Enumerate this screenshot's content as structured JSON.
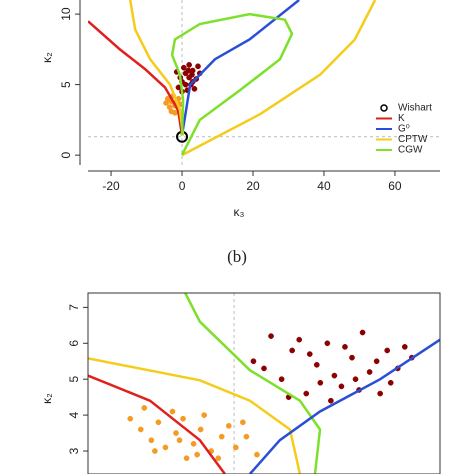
{
  "chart_data": [
    {
      "type": "line",
      "xlabel": "κ₃",
      "ylabel": "κ₂",
      "caption": "(b)",
      "xlim": [
        -26.5,
        72.7
      ],
      "ylim": [
        -0.7,
        11
      ],
      "xticks": [
        -20,
        0,
        20,
        40,
        60
      ],
      "yticks": [
        0,
        5,
        10
      ],
      "hline": 1.3,
      "vline": 0,
      "legend": "right",
      "series": [
        {
          "type": "scatter",
          "color": "#8b0000",
          "x": [
            0,
            1,
            2,
            3,
            -1,
            1.5,
            2.5,
            4,
            0.5,
            3.5,
            -0.5,
            2,
            5,
            1,
            3,
            -1.5,
            4.5,
            0,
            2.8,
            1.8
          ],
          "values": [
            5.2,
            5.8,
            5.5,
            6.0,
            4.8,
            4.6,
            5.0,
            5.4,
            6.2,
            4.7,
            5.5,
            6.4,
            5.8,
            5.0,
            5.2,
            5.9,
            6.3,
            4.5,
            5.7,
            6.0
          ]
        },
        {
          "type": "scatter",
          "color": "#f59a23",
          "x": [
            -3,
            -2,
            -1,
            -4,
            -2.5,
            -1.5,
            -3.5,
            -0.5,
            -2,
            -1,
            -3,
            -4.5
          ],
          "values": [
            3.8,
            3.5,
            3.2,
            4.0,
            4.2,
            3.8,
            3.4,
            3.6,
            3.0,
            4.0,
            3.1,
            3.7
          ]
        },
        {
          "type": "marker",
          "name": "Wishart",
          "color": "#000000",
          "x": [
            0
          ],
          "values": [
            1.3
          ]
        },
        {
          "type": "line",
          "name": "K",
          "color": "#e0201b",
          "x": [
            -26.5,
            -17.5,
            -10.4,
            -4.8,
            -1.1,
            0
          ],
          "values": [
            9.5,
            7.5,
            6.1,
            4.8,
            3.2,
            1.4
          ]
        },
        {
          "type": "line",
          "name": "G⁰",
          "color": "#2a4fd6",
          "x": [
            0,
            2.3,
            9.3,
            19,
            33
          ],
          "values": [
            1.4,
            5,
            6.8,
            8.2,
            11
          ]
        },
        {
          "type": "line",
          "name": "CPTW",
          "color": "#f5cc1b",
          "x": [
            -14.6,
            -13.2,
            -9,
            -3.4,
            -0.6,
            0.3,
            null,
            0,
            22,
            38.9,
            48.7,
            54.4
          ],
          "values": [
            11,
            8.9,
            6.8,
            5,
            3.2,
            1.4,
            null,
            0,
            2.9,
            5.7,
            8.2,
            11
          ]
        },
        {
          "type": "line",
          "name": "CGW",
          "color": "#7de02a",
          "x": [
            0,
            5,
            16.3,
            27.6,
            31,
            29,
            19,
            5,
            -2,
            -2.8,
            -0.6,
            0.3,
            0
          ],
          "values": [
            0,
            2.5,
            4.6,
            6.8,
            8.6,
            9.6,
            10,
            9.3,
            8.2,
            7.1,
            5.7,
            3.9,
            1.4
          ]
        }
      ]
    },
    {
      "type": "line",
      "ylabel": "κ₂",
      "xlim": [
        0,
        100
      ],
      "ylim": [
        2.36,
        7.4
      ],
      "yticks": [
        3,
        4,
        5,
        6,
        7
      ],
      "vline": 41.5,
      "series": [
        {
          "type": "scatter",
          "color": "#8b0000",
          "x": [
            47,
            52,
            55,
            58,
            62,
            65,
            68,
            70,
            72,
            75,
            78,
            80,
            83,
            85,
            88,
            90,
            60,
            66,
            73,
            77,
            82,
            50,
            57,
            86,
            92,
            63,
            69,
            76
          ],
          "values": [
            5.5,
            6.2,
            5.0,
            5.8,
            4.6,
            5.4,
            6.0,
            5.1,
            4.8,
            5.6,
            6.3,
            5.2,
            4.6,
            5.8,
            5.3,
            5.9,
            6.1,
            4.9,
            5.9,
            4.7,
            5.5,
            5.3,
            4.5,
            4.9,
            5.6,
            5.7,
            4.4,
            5.0
          ]
        },
        {
          "type": "scatter",
          "color": "#f59a23",
          "x": [
            12,
            15,
            18,
            20,
            22,
            25,
            27,
            30,
            32,
            35,
            38,
            40,
            42,
            45,
            48,
            24,
            28,
            33,
            19,
            37,
            44,
            16,
            26,
            31
          ],
          "values": [
            3.9,
            3.6,
            3.3,
            3.8,
            3.1,
            3.5,
            3.9,
            3.2,
            3.6,
            3.0,
            3.4,
            3.7,
            3.1,
            3.4,
            2.9,
            4.1,
            2.8,
            4.0,
            3.0,
            2.8,
            3.8,
            4.2,
            3.3,
            2.9
          ]
        },
        {
          "type": "line",
          "color": "#f5cc1b",
          "x": [
            0,
            31.8,
            46,
            57.4,
            60.2
          ],
          "values": [
            5.58,
            4.97,
            4.4,
            3.6,
            2.36
          ]
        },
        {
          "type": "line",
          "color": "#e0201b",
          "x": [
            0,
            17.6,
            31.8,
            38.9
          ],
          "values": [
            5.1,
            4.4,
            3.3,
            2.36
          ]
        },
        {
          "type": "line",
          "color": "#7de02a",
          "x": [
            27.6,
            31.8,
            46,
            60.2,
            65.9,
            64.5
          ],
          "values": [
            7.4,
            6.6,
            5.25,
            4.4,
            3.6,
            2.36
          ]
        },
        {
          "type": "line",
          "color": "#2a4fd6",
          "x": [
            100,
            83,
            65.9,
            54.5,
            46
          ],
          "values": [
            6.1,
            5,
            4.1,
            3.3,
            2.36
          ]
        }
      ]
    }
  ]
}
